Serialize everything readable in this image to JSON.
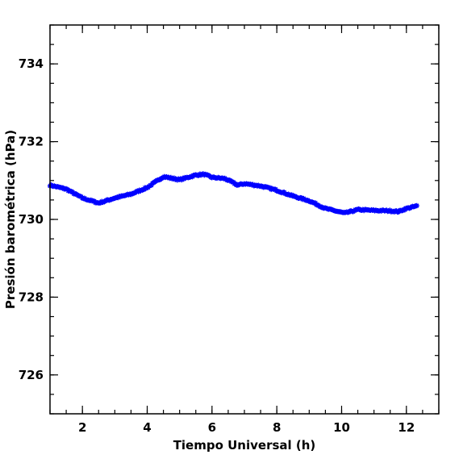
{
  "chart_data": {
    "type": "scatter",
    "xlabel": "Tiempo Universal (h)",
    "ylabel": "Presión barométrica (hPa)",
    "xlim": [
      1,
      13
    ],
    "ylim": [
      725,
      735
    ],
    "xticks": [
      2,
      4,
      6,
      8,
      10,
      12
    ],
    "yticks": [
      726,
      728,
      730,
      732,
      734
    ],
    "x_minor_step": 0.5,
    "y_minor_step": 0.5,
    "marker": "star",
    "color": "#0000ff",
    "grid": false,
    "key_points": [
      [
        1.0,
        730.88
      ],
      [
        1.5,
        730.78
      ],
      [
        2.0,
        730.55
      ],
      [
        2.5,
        730.42
      ],
      [
        3.0,
        730.55
      ],
      [
        3.5,
        730.65
      ],
      [
        4.0,
        730.82
      ],
      [
        4.5,
        731.1
      ],
      [
        5.0,
        731.02
      ],
      [
        5.5,
        731.14
      ],
      [
        5.75,
        731.16
      ],
      [
        6.0,
        731.08
      ],
      [
        6.4,
        731.05
      ],
      [
        6.8,
        730.88
      ],
      [
        7.0,
        730.92
      ],
      [
        7.5,
        730.86
      ],
      [
        8.0,
        730.75
      ],
      [
        8.5,
        730.6
      ],
      [
        9.0,
        730.48
      ],
      [
        9.5,
        730.28
      ],
      [
        10.0,
        730.18
      ],
      [
        10.1,
        730.16
      ],
      [
        10.5,
        730.25
      ],
      [
        11.0,
        730.23
      ],
      [
        11.5,
        730.22
      ],
      [
        11.75,
        730.2
      ],
      [
        12.0,
        730.28
      ],
      [
        12.35,
        730.35
      ]
    ],
    "point_spacing_h": 0.0333
  }
}
